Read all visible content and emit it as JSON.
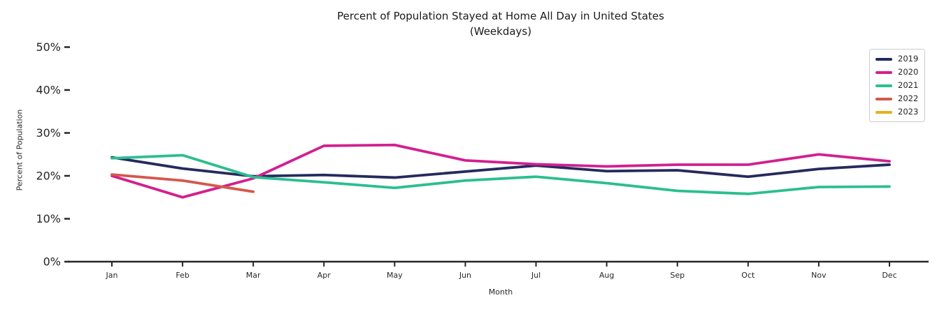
{
  "chart_data": {
    "type": "line",
    "title": "Percent of Population Stayed at Home All Day in United States",
    "subtitle": "(Weekdays)",
    "xlabel": "Month",
    "ylabel": "Percent of Population",
    "categories": [
      "Jan",
      "Feb",
      "Mar",
      "Apr",
      "May",
      "Jun",
      "Jul",
      "Aug",
      "Sep",
      "Oct",
      "Nov",
      "Dec"
    ],
    "yticks": [
      0,
      10,
      20,
      30,
      40,
      50
    ],
    "ytick_suffix": "%",
    "ylim": [
      0,
      50
    ],
    "grid": false,
    "legend_position": "upper right",
    "colors": {
      "background": "#ffffff",
      "text": "#262626",
      "axis": "#262626",
      "legend_border": "#cccccc"
    },
    "series": [
      {
        "name": "2019",
        "color": "#252a5e",
        "values": [
          24.3,
          21.7,
          19.9,
          20.2,
          19.6,
          21.0,
          22.4,
          21.1,
          21.3,
          19.8,
          21.6,
          22.6
        ]
      },
      {
        "name": "2020",
        "color": "#d2208f",
        "values": [
          20.0,
          15.0,
          19.4,
          27.0,
          27.2,
          23.6,
          22.7,
          22.2,
          22.6,
          22.6,
          25.0,
          23.4
        ]
      },
      {
        "name": "2021",
        "color": "#2cbe90",
        "values": [
          24.1,
          24.8,
          19.7,
          18.5,
          17.2,
          18.9,
          19.8,
          18.3,
          16.5,
          15.8,
          17.4,
          17.5
        ]
      },
      {
        "name": "2022",
        "color": "#d2594c",
        "values": [
          20.3,
          18.9,
          16.3
        ]
      },
      {
        "name": "2023",
        "color": "#dfb31b",
        "values": []
      }
    ]
  }
}
